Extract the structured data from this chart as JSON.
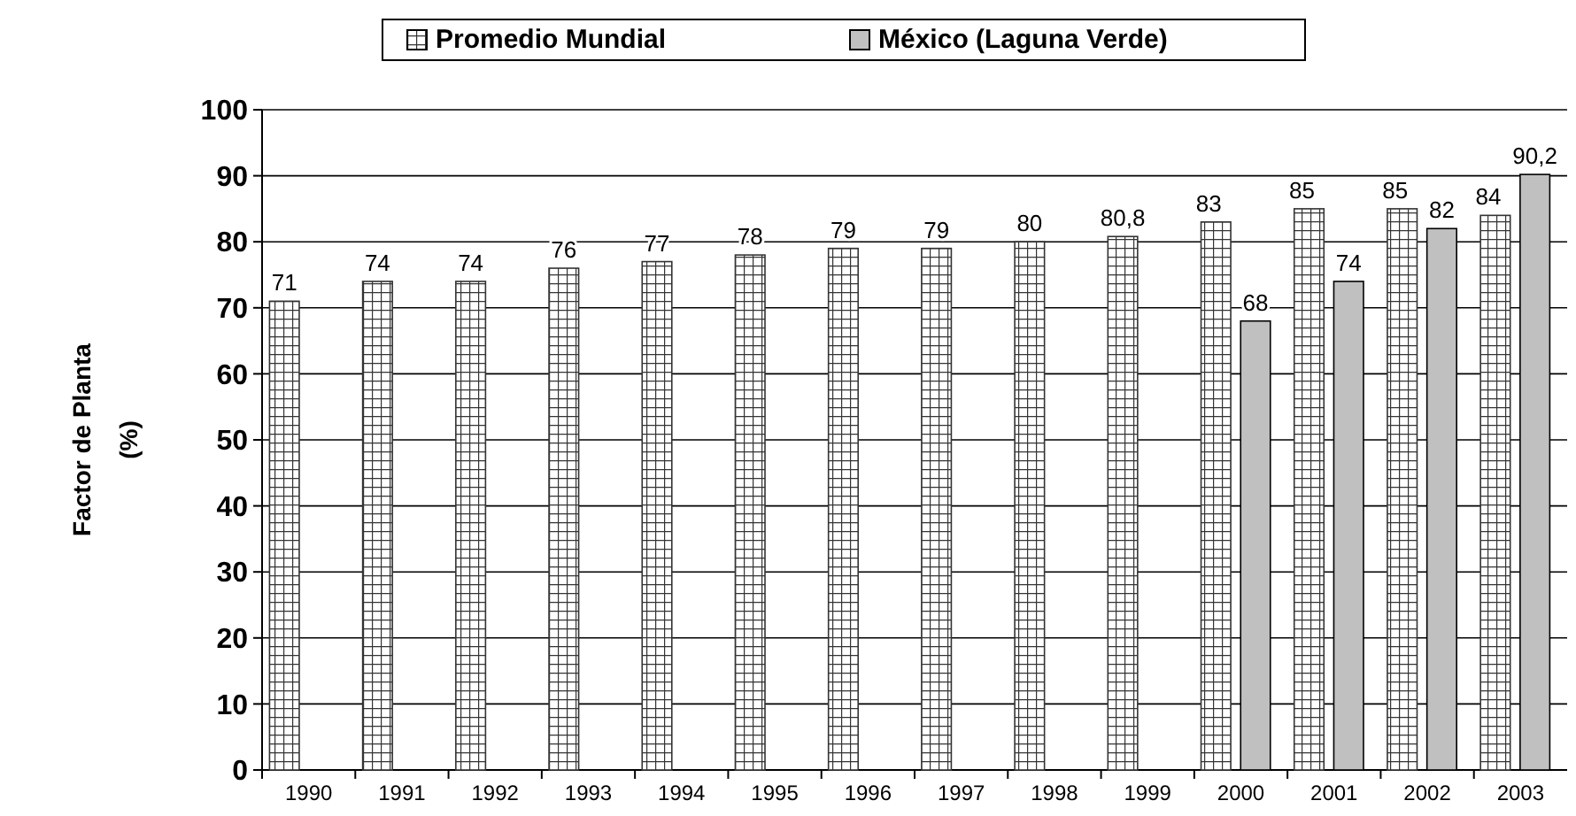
{
  "chart_data": {
    "type": "bar",
    "ylabel": "Factor de Planta (%)",
    "categories": [
      "1990",
      "1991",
      "1992",
      "1993",
      "1994",
      "1995",
      "1996",
      "1997",
      "1998",
      "1999",
      "2000",
      "2001",
      "2002",
      "2003"
    ],
    "series": [
      {
        "name": "Promedio Mundial",
        "color": "#333333",
        "values": [
          71,
          74,
          74,
          76,
          77,
          78,
          79,
          79,
          80,
          80.8,
          83,
          85,
          85,
          84
        ],
        "value_labels": [
          "71",
          "74",
          "74",
          "76",
          "77",
          "78",
          "79",
          "79",
          "80",
          "80,8",
          "83",
          "85",
          "85",
          "84"
        ]
      },
      {
        "name": "México (Laguna Verde)",
        "color": "#c0c0c0",
        "values": [
          null,
          null,
          null,
          null,
          null,
          null,
          null,
          null,
          null,
          null,
          68,
          74,
          82,
          90.2
        ],
        "value_labels": [
          null,
          null,
          null,
          null,
          null,
          null,
          null,
          null,
          null,
          null,
          "68",
          "74",
          "82",
          "90,2"
        ]
      }
    ],
    "ylim": [
      0,
      100
    ],
    "yticks": [
      0,
      10,
      20,
      30,
      40,
      50,
      60,
      70,
      80,
      90,
      100
    ],
    "grid": "y",
    "legend": "top"
  }
}
